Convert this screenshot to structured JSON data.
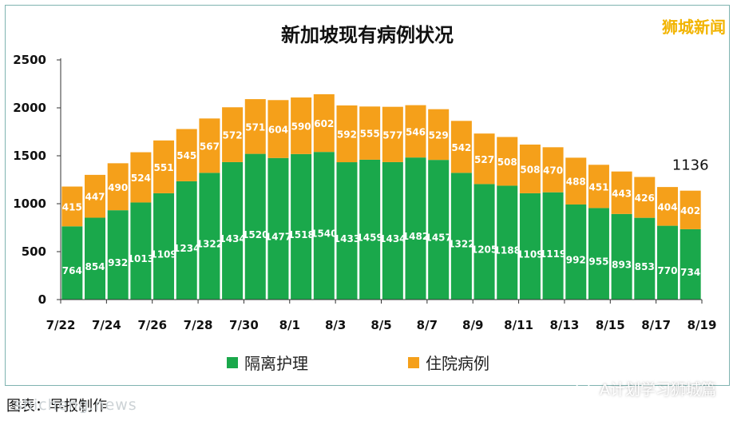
{
  "watermark": "狮城新闻",
  "caption": "图表：早报制作",
  "site_text": "shicheng.news",
  "wechat_text": "A计划学习狮城篇",
  "colors": {
    "green": "#1aa84b",
    "orange": "#f5a01a",
    "axis": "#333333"
  },
  "chart_data": {
    "type": "bar",
    "stacked": true,
    "title": "新加坡现有病例状况",
    "xlabel": "",
    "ylabel": "",
    "ylim": [
      0,
      2500
    ],
    "yticks": [
      0,
      500,
      1000,
      1500,
      2000,
      2500
    ],
    "x_tick_labels": [
      "7/22",
      "7/24",
      "7/26",
      "7/28",
      "7/30",
      "8/1",
      "8/3",
      "8/5",
      "8/7",
      "8/9",
      "8/11",
      "8/13",
      "8/15",
      "8/17",
      "8/19"
    ],
    "categories": [
      "7/22",
      "7/23",
      "7/24",
      "7/25",
      "7/26",
      "7/27",
      "7/28",
      "7/29",
      "7/30",
      "7/31",
      "8/1",
      "8/2",
      "8/3",
      "8/4",
      "8/5",
      "8/6",
      "8/7",
      "8/8",
      "8/9",
      "8/10",
      "8/11",
      "8/12",
      "8/13",
      "8/14",
      "8/15",
      "8/16",
      "8/17",
      "8/18"
    ],
    "series": [
      {
        "name": "隔离护理",
        "color": "#1aa84b",
        "values": [
          764,
          854,
          932,
          1013,
          1109,
          1234,
          1322,
          1434,
          1520,
          1477,
          1518,
          1540,
          1433,
          1459,
          1434,
          1482,
          1457,
          1322,
          1205,
          1188,
          1109,
          1119,
          992,
          955,
          893,
          853,
          770,
          734
        ]
      },
      {
        "name": "住院病例",
        "color": "#f5a01a",
        "values": [
          415,
          447,
          490,
          524,
          551,
          545,
          567,
          572,
          571,
          604,
          590,
          602,
          592,
          555,
          577,
          546,
          529,
          542,
          527,
          508,
          508,
          470,
          488,
          451,
          443,
          426,
          404,
          402
        ]
      }
    ],
    "legend_position": "bottom",
    "grid": false,
    "annotations": [
      {
        "category": "8/18",
        "text": "1136"
      }
    ]
  }
}
